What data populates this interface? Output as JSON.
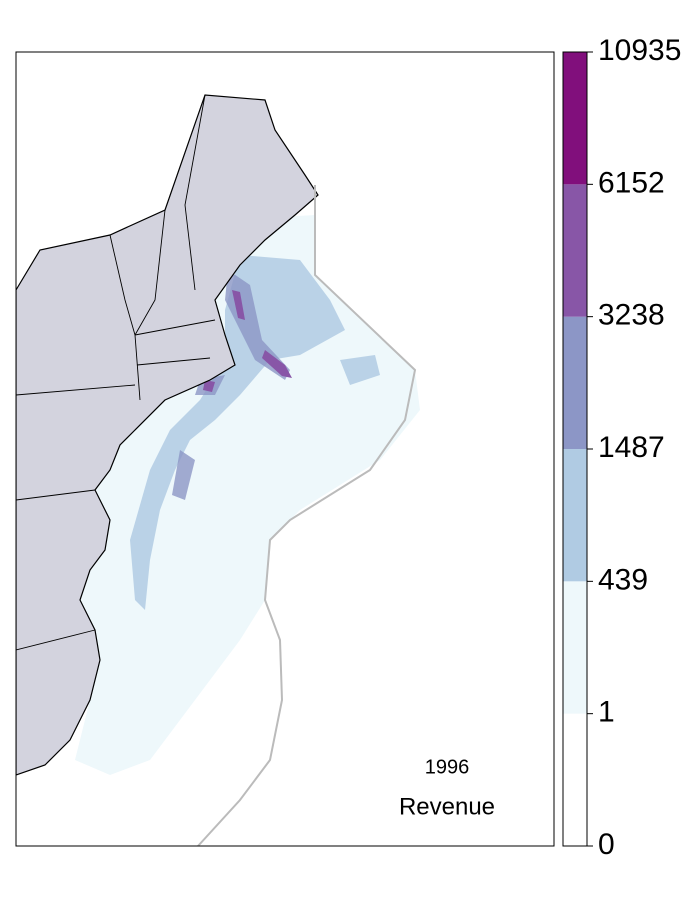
{
  "map": {
    "year": "1996",
    "label": "Revenue",
    "legend": {
      "breaks": [
        0,
        1,
        439,
        1487,
        3238,
        6152,
        10935
      ],
      "colors": [
        "#ffffff",
        "#eef8fb",
        "#b0cbe3",
        "#8c96c6",
        "#8856a7",
        "#810f7c"
      ]
    }
  }
}
